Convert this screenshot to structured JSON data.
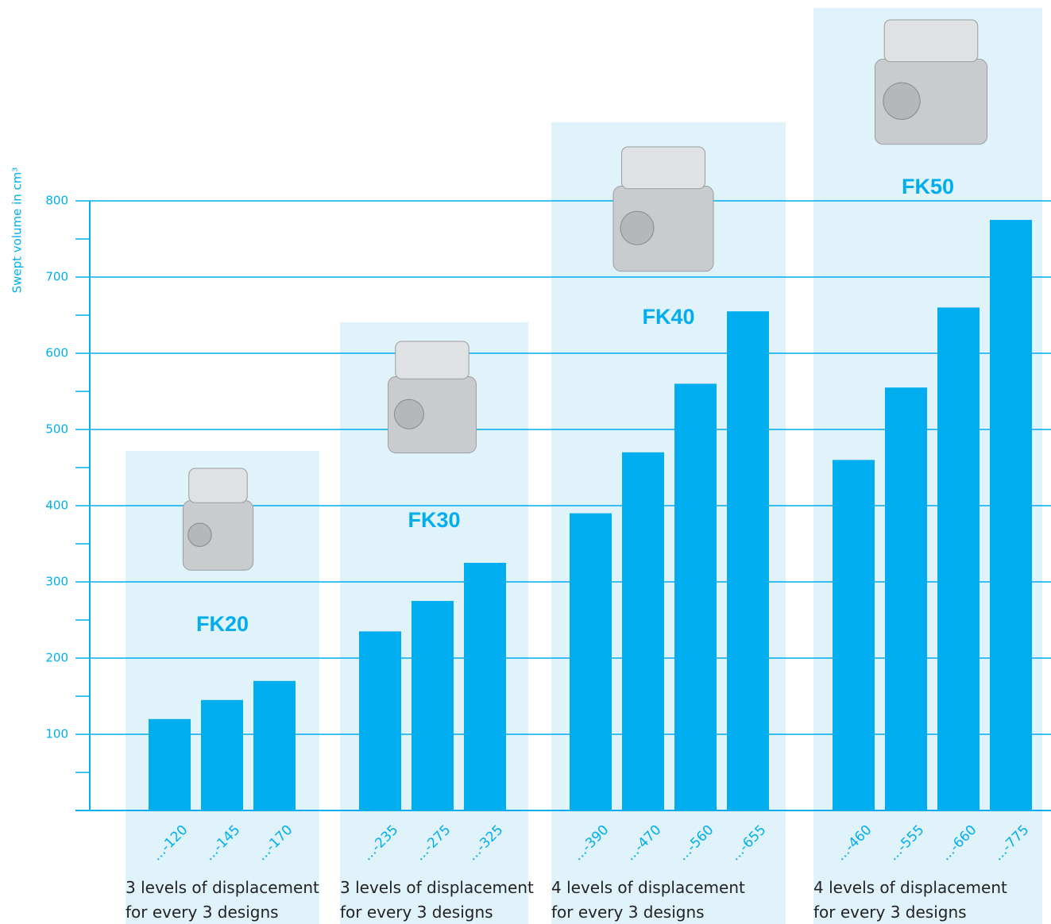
{
  "chart_data": {
    "type": "bar",
    "y_label": "Swept volume in cm³",
    "color": "#00aeef",
    "panel_color": "#e0f3fa",
    "ylim": [
      0,
      800
    ],
    "yticks": [
      100,
      200,
      300,
      400,
      500,
      600,
      700,
      800
    ],
    "grid": true,
    "groups": [
      {
        "name": "FK20",
        "caption": [
          "3 levels of displacement",
          "for every 3 designs"
        ],
        "categories": [
          "...-120",
          "...-145",
          "...-170"
        ],
        "values": [
          120,
          145,
          170
        ]
      },
      {
        "name": "FK30",
        "caption": [
          "3 levels of displacement",
          "for every 3 designs"
        ],
        "categories": [
          "...-235",
          "...-275",
          "...-325"
        ],
        "values": [
          235,
          275,
          325
        ]
      },
      {
        "name": "FK40",
        "caption": [
          "4 levels of displacement",
          "for every 3 designs"
        ],
        "categories": [
          "...-390",
          "...-470",
          "...-560",
          "...-655"
        ],
        "values": [
          390,
          470,
          560,
          655
        ]
      },
      {
        "name": "FK50",
        "caption": [
          "4 levels of displacement",
          "for every 3 designs"
        ],
        "categories": [
          "...-460",
          "...-555",
          "...-660",
          "...-775"
        ],
        "values": [
          460,
          555,
          660,
          775
        ]
      }
    ]
  }
}
